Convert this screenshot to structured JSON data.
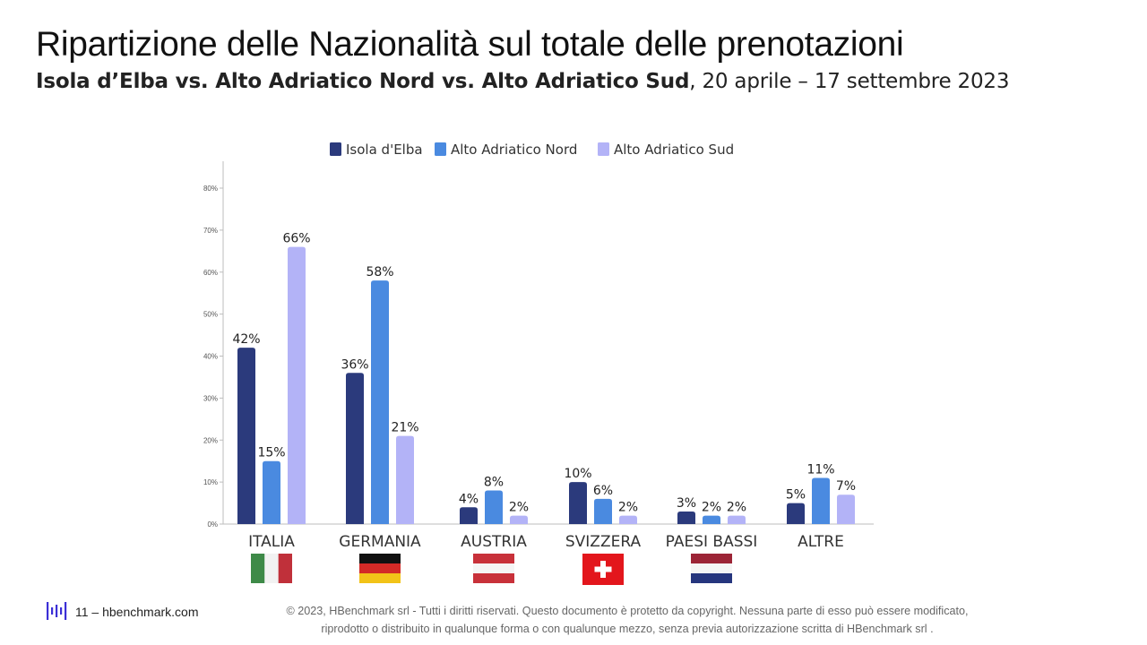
{
  "header": {
    "title": "Ripartizione delle Nazionalità sul totale delle prenotazioni",
    "subtitle_strong": "Isola d’Elba vs. Alto Adriatico Nord vs. Alto Adriatico Sud",
    "subtitle_rest": ", 20 aprile – 17 settembre 2023"
  },
  "chart_data": {
    "type": "bar",
    "title": "",
    "xlabel": "",
    "ylabel": "",
    "categories": [
      "ITALIA",
      "GERMANIA",
      "AUSTRIA",
      "SVIZZERA",
      "PAESI BASSI",
      "ALTRE"
    ],
    "series": [
      {
        "name": "Isola d'Elba",
        "values": [
          42,
          36,
          4,
          10,
          3,
          5
        ],
        "labels": [
          "42%",
          "36%",
          "4%",
          "10%",
          "3%",
          "5%"
        ],
        "color": "#2b3a7c"
      },
      {
        "name": "Alto Adriatico Nord",
        "values": [
          15,
          58,
          8,
          6,
          2,
          11
        ],
        "labels": [
          "15%",
          "58%",
          "8%",
          "6%",
          "2%",
          "11%"
        ],
        "color": "#4a8ae0"
      },
      {
        "name": "Alto Adriatico Sud",
        "values": [
          66,
          21,
          2,
          2,
          2,
          7
        ],
        "labels": [
          "66%",
          "21%",
          "2%",
          "2%",
          "2%",
          "7%"
        ],
        "color": "#b3b3f7"
      }
    ],
    "ylim": [
      0,
      80
    ],
    "yticks": [
      0,
      10,
      20,
      30,
      40,
      50,
      60,
      70,
      80
    ],
    "ytick_labels": [
      "0%",
      "10%",
      "20%",
      "30%",
      "40%",
      "50%",
      "60%",
      "70%",
      "80%"
    ],
    "grid": false,
    "legend_position": "top-center",
    "flags": [
      "italy-flag",
      "germany-flag",
      "austria-flag",
      "switzerland-flag",
      "netherlands-flag",
      "none"
    ]
  },
  "footer": {
    "page": "11 – hbenchmark.com",
    "copyright_line1": "© 2023, HBenchmark srl - Tutti i diritti riservati. Questo documento è protetto da copyright. Nessuna parte di esso può essere modificato,",
    "copyright_line2": "riprodotto o distribuito in qualunque forma o con qualunque mezzo, senza previa autorizzazione scritta di HBenchmark srl ."
  },
  "colors": {
    "elba": "#2b3a7c",
    "nord": "#4a8ae0",
    "sud": "#b3b3f7",
    "logo": "#3b2fd6"
  }
}
